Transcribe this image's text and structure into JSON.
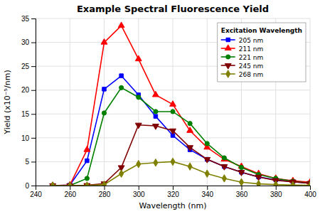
{
  "chart_data": {
    "type": "line",
    "title": "Example Spectral Fluorescence Yield",
    "x_label": "Wavelength (nm)",
    "y_label": "Yield (x10⁻⁵/nm)",
    "legend_title": "Excitation Wavelength",
    "legend": "top-right",
    "grid": true,
    "xlim": [
      240,
      400
    ],
    "ylim": [
      0,
      35
    ],
    "xticks": [
      240,
      260,
      280,
      300,
      320,
      340,
      360,
      380,
      400
    ],
    "yticks": [
      0,
      5,
      10,
      15,
      20,
      25,
      30,
      35
    ],
    "x": [
      250,
      260,
      270,
      280,
      290,
      300,
      310,
      320,
      330,
      340,
      350,
      360,
      370,
      380,
      390,
      400
    ],
    "series": [
      {
        "name": "205 nm",
        "color": "#0000ff",
        "marker": "square",
        "values": [
          0.0,
          0.1,
          5.2,
          20.2,
          23.0,
          19.0,
          14.5,
          10.5,
          7.5,
          5.5,
          4.0,
          2.8,
          1.8,
          1.2,
          0.8,
          0.5
        ]
      },
      {
        "name": "211 nm",
        "color": "#ff0000",
        "marker": "triangle-up",
        "values": [
          0.0,
          0.1,
          7.5,
          30.0,
          33.5,
          26.5,
          19.0,
          17.0,
          11.5,
          8.0,
          5.5,
          4.0,
          2.5,
          1.5,
          1.0,
          0.7
        ]
      },
      {
        "name": "221 nm",
        "color": "#008000",
        "marker": "circle",
        "values": [
          0.0,
          0.0,
          1.5,
          15.2,
          20.5,
          18.5,
          15.5,
          15.5,
          13.0,
          8.8,
          5.8,
          3.8,
          2.3,
          1.5,
          0.9,
          0.5
        ]
      },
      {
        "name": "245 nm",
        "color": "#800000",
        "marker": "triangle-down",
        "values": [
          0.0,
          0.0,
          0.05,
          0.4,
          3.8,
          12.7,
          12.5,
          11.5,
          8.0,
          5.5,
          4.0,
          2.8,
          1.8,
          1.1,
          0.8,
          0.5
        ]
      },
      {
        "name": "268 nm",
        "color": "#808000",
        "marker": "diamond",
        "values": [
          0.0,
          0.0,
          0.0,
          0.2,
          2.5,
          4.5,
          4.8,
          5.0,
          4.0,
          2.5,
          1.5,
          0.7,
          0.35,
          0.2,
          0.1,
          0.05
        ]
      }
    ]
  }
}
